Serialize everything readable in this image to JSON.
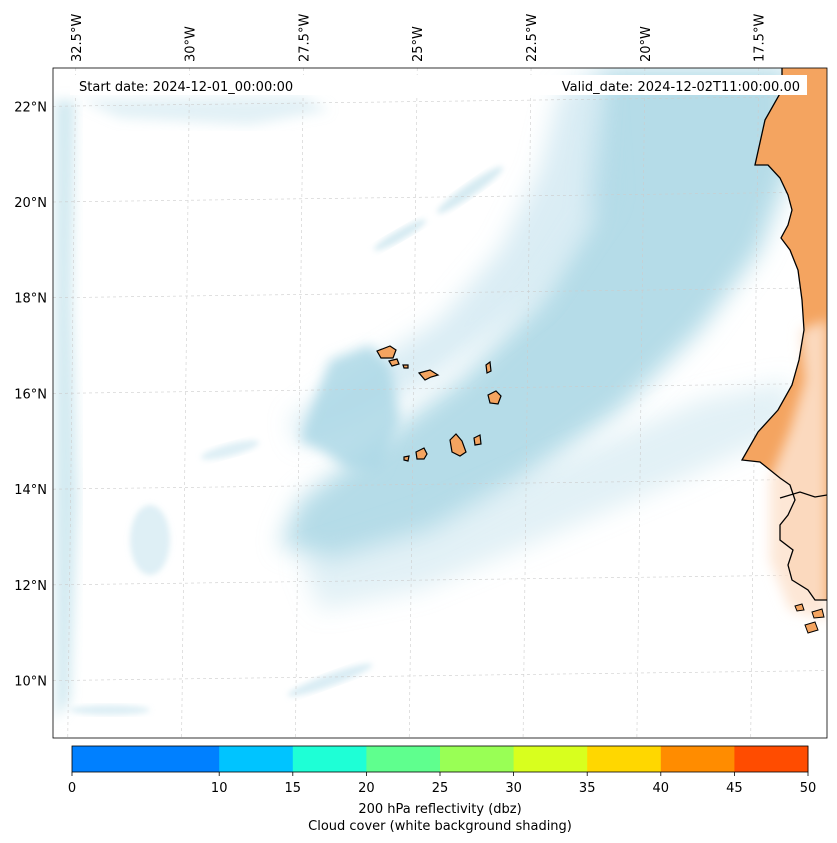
{
  "figure": {
    "start_label": "Start date: 2024-12-01_00:00:00",
    "valid_label": "Valid_date: 2024-12-02T11:00:00.00",
    "colorbar_label_line1": "200 hPa reflectivity (dbz)",
    "colorbar_label_line2": "Cloud cover (white background shading)"
  },
  "map_extent": {
    "lon_min": -33.0,
    "lon_max": -16.0,
    "lat_min": 8.8,
    "lat_max": 22.8
  },
  "lon_ticks": [
    {
      "value": -32.5,
      "label": "32.5°W"
    },
    {
      "value": -30.0,
      "label": "30°W"
    },
    {
      "value": -27.5,
      "label": "27.5°W"
    },
    {
      "value": -25.0,
      "label": "25°W"
    },
    {
      "value": -22.5,
      "label": "22.5°W"
    },
    {
      "value": -20.0,
      "label": "20°W"
    },
    {
      "value": -17.5,
      "label": "17.5°W"
    }
  ],
  "lat_ticks": [
    {
      "value": 22,
      "label": "22°N"
    },
    {
      "value": 20,
      "label": "20°N"
    },
    {
      "value": 18,
      "label": "18°N"
    },
    {
      "value": 16,
      "label": "16°N"
    },
    {
      "value": 14,
      "label": "14°N"
    },
    {
      "value": 12,
      "label": "12°N"
    },
    {
      "value": 10,
      "label": "10°N"
    }
  ],
  "colorbar": {
    "levels": [
      0,
      5,
      10,
      15,
      20,
      25,
      30,
      35,
      40,
      45,
      50
    ],
    "tick_values": [
      0,
      10,
      15,
      20,
      25,
      30,
      35,
      40,
      45,
      50
    ],
    "tick_labels": [
      "0",
      "10",
      "15",
      "20",
      "25",
      "30",
      "35",
      "40",
      "45",
      "50"
    ],
    "colors": [
      "#0080ff",
      "#0080ff",
      "#00c4ff",
      "#1effd6",
      "#5fff8e",
      "#99ff55",
      "#d8ff1e",
      "#ffd700",
      "#ff8c00",
      "#ff4c00"
    ]
  },
  "colors": {
    "land_africa": "#f4a460",
    "land_islands": "#f4a460",
    "cloud_blue": "#add8e6",
    "coastline": "#000000",
    "grid": "#cccccc"
  }
}
